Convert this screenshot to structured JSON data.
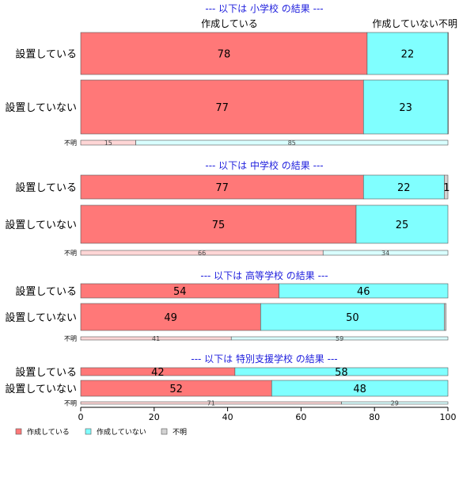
{
  "chart_data": {
    "type": "bar",
    "orientation": "horizontal",
    "stacked": true,
    "percent": true,
    "xlim": [
      0,
      100
    ],
    "xticks": [
      0,
      20,
      40,
      60,
      80,
      100
    ],
    "column_headers": [
      "作成している",
      "作成していない",
      "不明"
    ],
    "colors": {
      "作成している": "#ff7878",
      "作成していない": "#80ffff",
      "不明": "#d3d3d3"
    },
    "legend": {
      "position": "bottom-left",
      "items": [
        "作成している",
        "作成していない",
        "不明"
      ]
    },
    "groups": [
      {
        "title": "--- 以下は 小学校 の結果 ---",
        "rows": [
          {
            "label": "設置している",
            "values": [
              78,
              22,
              0.4
            ]
          },
          {
            "label": "設置していない",
            "values": [
              77,
              23,
              0.3
            ]
          },
          {
            "label": "不明",
            "values": [
              15,
              85,
              0
            ]
          }
        ]
      },
      {
        "title": "--- 以下は 中学校 の結果 ---",
        "rows": [
          {
            "label": "設置している",
            "values": [
              77,
              22,
              1
            ]
          },
          {
            "label": "設置していない",
            "values": [
              75,
              25,
              0
            ]
          },
          {
            "label": "不明",
            "values": [
              66,
              34,
              0
            ]
          }
        ]
      },
      {
        "title": "--- 以下は 高等学校 の結果 ---",
        "rows": [
          {
            "label": "設置している",
            "values": [
              54,
              46,
              0
            ]
          },
          {
            "label": "設置していない",
            "values": [
              49,
              50,
              0.5
            ]
          },
          {
            "label": "不明",
            "values": [
              41,
              59,
              0
            ]
          }
        ]
      },
      {
        "title": "--- 以下は 特別支援学校 の結果 ---",
        "rows": [
          {
            "label": "設置している",
            "values": [
              42,
              58,
              0
            ]
          },
          {
            "label": "設置していない",
            "values": [
              52,
              48,
              0
            ]
          },
          {
            "label": "不明",
            "values": [
              71,
              29,
              0
            ]
          }
        ]
      }
    ]
  }
}
